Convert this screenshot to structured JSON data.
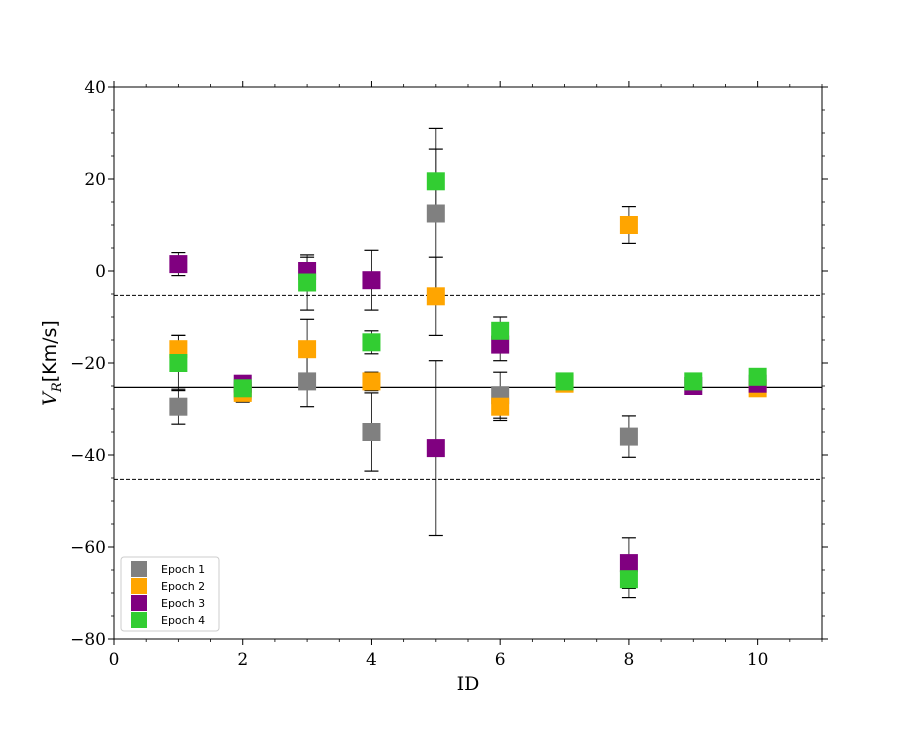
{
  "chart_data": {
    "type": "scatter",
    "title": "",
    "xlabel": "ID",
    "ylabel": "V_R [Km/s]",
    "ylabel_main": "V",
    "ylabel_sub": "R",
    "ylabel_unit": "[Km/s]",
    "xlim": [
      0,
      11
    ],
    "ylim": [
      -80,
      40
    ],
    "x_ticks": [
      0,
      2,
      4,
      6,
      8,
      10
    ],
    "x_tick_labels": [
      "0",
      "2",
      "4",
      "6",
      "8",
      "10"
    ],
    "y_ticks": [
      -80,
      -60,
      -40,
      -20,
      0,
      20,
      40
    ],
    "y_tick_labels": [
      "−80",
      "−60",
      "−40",
      "−20",
      "0",
      "20",
      "40"
    ],
    "grid": false,
    "legend_position": "lower-left",
    "reference_lines": [
      {
        "y": -25.3,
        "style": "solid"
      },
      {
        "y": -5.3,
        "style": "dashed"
      },
      {
        "y": -45.3,
        "style": "dashed"
      }
    ],
    "series": [
      {
        "name": "Epoch 1",
        "color": "#808080",
        "points": [
          {
            "x": 1,
            "y": -29.5,
            "err": 3.8
          },
          {
            "x": 2,
            "y": -26.0,
            "err": 2.5
          },
          {
            "x": 3,
            "y": -24.0,
            "err": 5.5
          },
          {
            "x": 4,
            "y": -35.0,
            "err": 8.5
          },
          {
            "x": 5,
            "y": 12.5,
            "err": 18.5
          },
          {
            "x": 6,
            "y": -27.0,
            "err": 5.0
          },
          {
            "x": 8,
            "y": -36.0,
            "err": 4.5
          }
        ]
      },
      {
        "name": "Epoch 2",
        "color": "#ffa500",
        "points": [
          {
            "x": 1,
            "y": -17.0,
            "err": 3.0
          },
          {
            "x": 2,
            "y": -26.5,
            "err": 1.5
          },
          {
            "x": 3,
            "y": -17.0,
            "err": 6.5
          },
          {
            "x": 4,
            "y": -24.0,
            "err": 2.0
          },
          {
            "x": 5,
            "y": -5.5,
            "err": 8.5
          },
          {
            "x": 6,
            "y": -29.5,
            "err": 3.0
          },
          {
            "x": 7,
            "y": -24.5,
            "err": 0.8
          },
          {
            "x": 8,
            "y": 10.0,
            "err": 4.0
          },
          {
            "x": 10,
            "y": -25.5,
            "err": 0.8
          }
        ]
      },
      {
        "name": "Epoch 3",
        "color": "#800080",
        "points": [
          {
            "x": 1,
            "y": 1.5,
            "err": 2.5
          },
          {
            "x": 2,
            "y": -24.5,
            "err": 1.5
          },
          {
            "x": 3,
            "y": 0.0,
            "err": 3.0
          },
          {
            "x": 4,
            "y": -2.0,
            "err": 6.5
          },
          {
            "x": 5,
            "y": -38.5,
            "err": 19.0
          },
          {
            "x": 6,
            "y": -16.0,
            "err": 3.5
          },
          {
            "x": 8,
            "y": -63.5,
            "err": 5.5
          },
          {
            "x": 9,
            "y": -25.0,
            "err": 0.8
          },
          {
            "x": 10,
            "y": -24.5,
            "err": 0.8
          }
        ]
      },
      {
        "name": "Epoch 4",
        "color": "#32cd32",
        "points": [
          {
            "x": 1,
            "y": -20.0,
            "err": 6.0
          },
          {
            "x": 2,
            "y": -25.5,
            "err": 1.5
          },
          {
            "x": 3,
            "y": -2.5,
            "err": 6.0
          },
          {
            "x": 4,
            "y": -15.5,
            "err": 2.5
          },
          {
            "x": 5,
            "y": 19.5,
            "err": 7.0
          },
          {
            "x": 6,
            "y": -13.0,
            "err": 3.0
          },
          {
            "x": 7,
            "y": -24.0,
            "err": 0.8
          },
          {
            "x": 8,
            "y": -67.0,
            "err": 4.0
          },
          {
            "x": 9,
            "y": -24.0,
            "err": 0.8
          },
          {
            "x": 10,
            "y": -23.0,
            "err": 0.8
          }
        ]
      }
    ]
  }
}
